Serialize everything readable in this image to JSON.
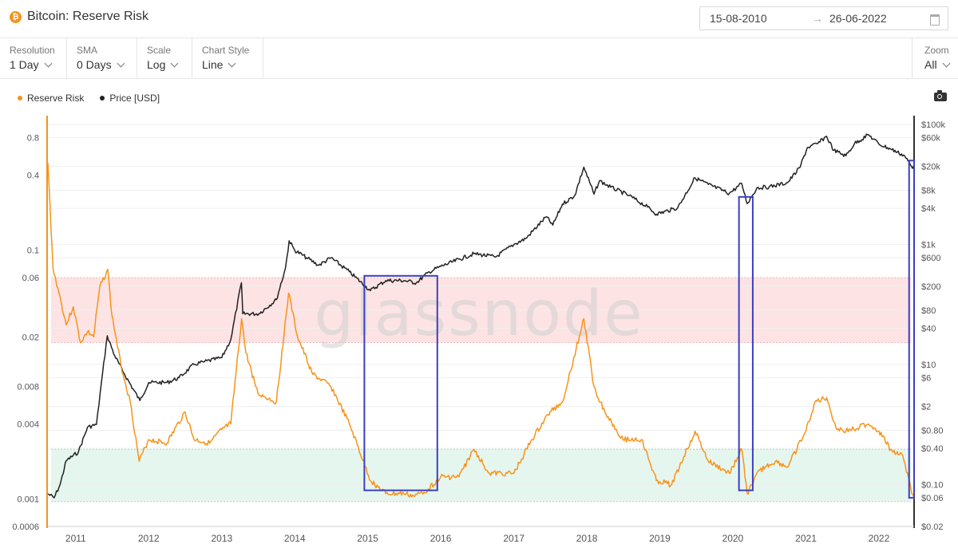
{
  "header": {
    "title": "Bitcoin: Reserve Risk",
    "icon": "bitcoin-icon",
    "date_from": "15-08-2010",
    "date_arrow": "→",
    "date_to": "26-06-2022"
  },
  "controls": [
    {
      "key": "resolution",
      "label": "Resolution",
      "value": "1 Day"
    },
    {
      "key": "sma",
      "label": "SMA",
      "value": "0 Days"
    },
    {
      "key": "scale",
      "label": "Scale",
      "value": "Log"
    },
    {
      "key": "chart-style",
      "label": "Chart Style",
      "value": "Line"
    }
  ],
  "zoom": {
    "label": "Zoom",
    "value": "All"
  },
  "watermark": "glassnode",
  "colors": {
    "reserve_risk": "#f7931a",
    "price": "#222222",
    "red_band": "#fde3e3",
    "green_band": "#e5f6ee",
    "highlight_box": "#3b3fc4"
  },
  "chart_data": {
    "type": "line",
    "x_range": [
      "2010-08-15",
      "2022-06-26"
    ],
    "x_ticks": [
      "2011",
      "2012",
      "2013",
      "2014",
      "2015",
      "2016",
      "2017",
      "2018",
      "2019",
      "2020",
      "2021",
      "2022"
    ],
    "left_axis": {
      "scale": "log",
      "range": [
        0.0006,
        1.2
      ],
      "ticks": [
        "0.8",
        "0.4",
        "0.1",
        "0.06",
        "0.02",
        "0.008",
        "0.004",
        "0.001",
        "0.0006"
      ]
    },
    "right_axis": {
      "scale": "log",
      "range": [
        0.02,
        140000
      ],
      "ticks": [
        "$100k",
        "$60k",
        "$20k",
        "$8k",
        "$4k",
        "$1k",
        "$600",
        "$200",
        "$80",
        "$40",
        "$10",
        "$6",
        "$2",
        "$0.80",
        "$0.40",
        "$0.10",
        "$0.06",
        "$0.02"
      ]
    },
    "bands": [
      {
        "name": "high",
        "from": 0.018,
        "to": 0.06
      },
      {
        "name": "low",
        "from": 0.00095,
        "to": 0.0025
      }
    ],
    "highlight_boxes": [
      {
        "x": [
          "2014-12-15",
          "2015-12-15"
        ],
        "price": [
          0.08,
          300
        ]
      },
      {
        "x": [
          "2020-02-01",
          "2020-04-10"
        ],
        "price": [
          0.08,
          6200
        ]
      },
      {
        "x": [
          "2022-06-01",
          "2022-06-26"
        ],
        "price": [
          0.06,
          25000
        ]
      }
    ],
    "series": [
      {
        "name": "Reserve Risk",
        "axis": "left",
        "x": [
          "2010-08-15",
          "2010-09-10",
          "2010-10-10",
          "2010-11-15",
          "2010-12-20",
          "2011-01-25",
          "2011-03-01",
          "2011-04-01",
          "2011-05-01",
          "2011-06-10",
          "2011-07-01",
          "2011-08-15",
          "2011-10-01",
          "2011-11-15",
          "2012-01-01",
          "2012-04-01",
          "2012-07-01",
          "2012-08-15",
          "2012-11-01",
          "2013-01-01",
          "2013-02-15",
          "2013-04-10",
          "2013-05-01",
          "2013-07-01",
          "2013-10-01",
          "2013-12-01",
          "2014-01-15",
          "2014-04-01",
          "2014-07-01",
          "2014-10-01",
          "2015-01-15",
          "2015-04-01",
          "2015-07-01",
          "2015-08-25",
          "2015-11-01",
          "2016-01-01",
          "2016-04-01",
          "2016-06-15",
          "2016-09-01",
          "2017-01-01",
          "2017-04-01",
          "2017-07-01",
          "2017-09-01",
          "2017-12-17",
          "2018-02-05",
          "2018-04-01",
          "2018-07-01",
          "2018-10-01",
          "2018-12-15",
          "2019-03-01",
          "2019-06-26",
          "2019-09-01",
          "2019-12-15",
          "2020-02-15",
          "2020-03-13",
          "2020-05-15",
          "2020-08-01",
          "2020-10-01",
          "2021-01-01",
          "2021-02-15",
          "2021-04-15",
          "2021-06-01",
          "2021-07-20",
          "2021-11-10",
          "2022-01-01",
          "2022-03-01",
          "2022-05-01",
          "2022-06-10",
          "2022-06-26"
        ],
        "values": [
          0.5,
          0.07,
          0.045,
          0.025,
          0.035,
          0.018,
          0.022,
          0.02,
          0.05,
          0.07,
          0.03,
          0.012,
          0.006,
          0.002,
          0.003,
          0.0028,
          0.005,
          0.003,
          0.0028,
          0.0036,
          0.004,
          0.028,
          0.015,
          0.007,
          0.006,
          0.045,
          0.02,
          0.01,
          0.008,
          0.004,
          0.0014,
          0.0011,
          0.0011,
          0.00105,
          0.0012,
          0.0015,
          0.0015,
          0.0025,
          0.0016,
          0.0016,
          0.003,
          0.005,
          0.006,
          0.028,
          0.008,
          0.005,
          0.003,
          0.003,
          0.0014,
          0.0013,
          0.0035,
          0.002,
          0.0016,
          0.0025,
          0.0011,
          0.0017,
          0.002,
          0.0018,
          0.0035,
          0.006,
          0.0065,
          0.0037,
          0.0035,
          0.004,
          0.0035,
          0.0025,
          0.0022,
          0.0012,
          0.001
        ]
      },
      {
        "name": "Price [USD]",
        "axis": "right",
        "x": [
          "2010-08-15",
          "2010-09-15",
          "2010-10-15",
          "2010-11-15",
          "2011-01-15",
          "2011-03-01",
          "2011-04-15",
          "2011-05-15",
          "2011-06-08",
          "2011-07-15",
          "2011-09-01",
          "2011-11-18",
          "2012-01-01",
          "2012-04-01",
          "2012-06-01",
          "2012-08-15",
          "2012-10-01",
          "2013-01-01",
          "2013-02-15",
          "2013-04-09",
          "2013-04-16",
          "2013-07-05",
          "2013-10-01",
          "2013-11-15",
          "2013-12-04",
          "2014-01-01",
          "2014-03-01",
          "2014-05-01",
          "2014-07-01",
          "2014-10-01",
          "2015-01-14",
          "2015-04-01",
          "2015-07-01",
          "2015-09-01",
          "2015-11-05",
          "2016-01-01",
          "2016-06-15",
          "2016-10-01",
          "2017-01-01",
          "2017-03-01",
          "2017-06-12",
          "2017-07-15",
          "2017-09-01",
          "2017-11-01",
          "2017-12-17",
          "2018-02-06",
          "2018-03-05",
          "2018-05-01",
          "2018-08-01",
          "2018-11-01",
          "2018-12-15",
          "2019-04-01",
          "2019-06-26",
          "2019-09-01",
          "2019-12-15",
          "2020-02-15",
          "2020-03-13",
          "2020-05-01",
          "2020-07-01",
          "2020-10-01",
          "2020-12-01",
          "2021-01-08",
          "2021-03-01",
          "2021-04-14",
          "2021-05-20",
          "2021-07-20",
          "2021-09-01",
          "2021-11-10",
          "2022-01-01",
          "2022-03-01",
          "2022-05-10",
          "2022-06-18",
          "2022-06-26"
        ],
        "values": [
          0.07,
          0.06,
          0.1,
          0.25,
          0.35,
          0.9,
          1.0,
          7,
          30,
          14,
          7,
          2.5,
          5,
          5,
          6,
          10,
          11,
          13,
          26,
          230,
          70,
          70,
          120,
          400,
          1150,
          800,
          600,
          450,
          600,
          350,
          170,
          250,
          250,
          230,
          350,
          430,
          700,
          620,
          1000,
          1250,
          2900,
          2100,
          4700,
          6500,
          19400,
          6900,
          11500,
          9000,
          6500,
          4200,
          3200,
          4100,
          12900,
          10000,
          7100,
          10300,
          4800,
          8800,
          9100,
          10700,
          19000,
          41000,
          48000,
          63500,
          37000,
          30000,
          48000,
          67500,
          47000,
          39000,
          30000,
          18500,
          21000
        ]
      }
    ]
  }
}
